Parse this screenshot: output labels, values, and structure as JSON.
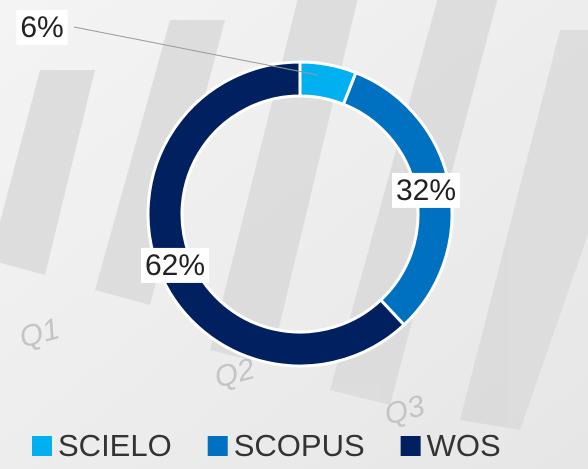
{
  "chart_data": {
    "type": "donut",
    "categories": [
      "SCIELO",
      "SCOPUS",
      "WOS"
    ],
    "values": [
      6,
      32,
      62
    ],
    "value_labels": [
      "6%",
      "32%",
      "62%"
    ],
    "colors": [
      "#00b0f0",
      "#0070c0",
      "#002060"
    ],
    "legend": "bottom"
  },
  "background_labels": [
    "Q1",
    "Q2",
    "Q3"
  ]
}
